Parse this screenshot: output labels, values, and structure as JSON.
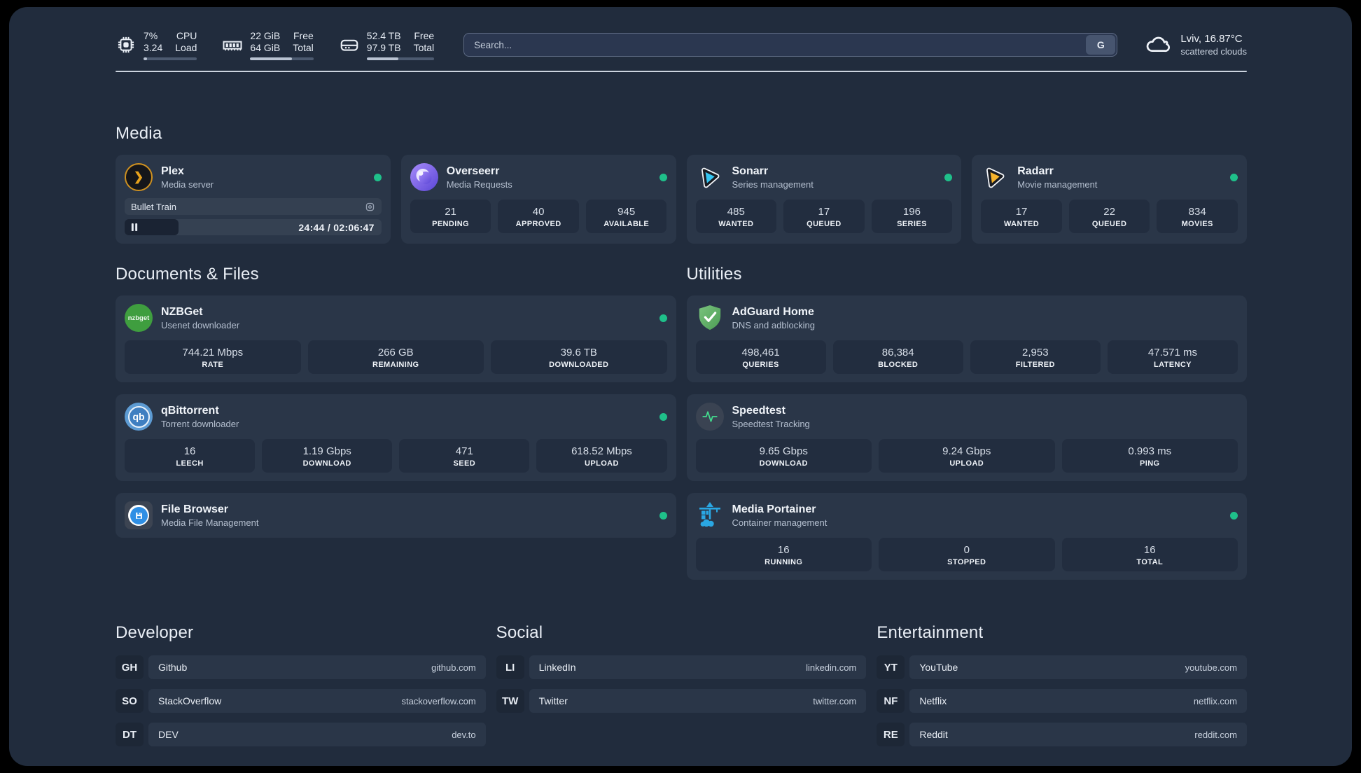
{
  "system_bar": {
    "cpu": {
      "icon": "cpu-chip-icon",
      "values": [
        "7%",
        "3.24"
      ],
      "labels": [
        "CPU",
        "Load"
      ],
      "progress_pct": 7
    },
    "ram": {
      "icon": "memory-icon",
      "values": [
        "22 GiB",
        "64 GiB"
      ],
      "labels": [
        "Free",
        "Total"
      ],
      "progress_pct": 66
    },
    "disk": {
      "icon": "hard-drive-icon",
      "values": [
        "52.4 TB",
        "97.9 TB"
      ],
      "labels": [
        "Free",
        "Total"
      ],
      "progress_pct": 47
    },
    "search": {
      "placeholder": "Search...",
      "provider_button": "G"
    },
    "weather": {
      "icon": "cloud-icon",
      "location_temperature": "Lviv, 16.87°C",
      "condition": "scattered clouds"
    }
  },
  "sections": {
    "media": {
      "title": "Media",
      "cards": {
        "plex": {
          "title": "Plex",
          "subtitle": "Media server",
          "online": true,
          "player": {
            "now_playing": "Bullet Train",
            "time": "24:44 / 02:06:47",
            "progress_pct": 21
          }
        },
        "overseerr": {
          "title": "Overseerr",
          "subtitle": "Media Requests",
          "online": true,
          "stats": [
            {
              "value": "21",
              "label": "PENDING"
            },
            {
              "value": "40",
              "label": "APPROVED"
            },
            {
              "value": "945",
              "label": "AVAILABLE"
            }
          ]
        },
        "sonarr": {
          "title": "Sonarr",
          "subtitle": "Series management",
          "online": true,
          "stats": [
            {
              "value": "485",
              "label": "WANTED"
            },
            {
              "value": "17",
              "label": "QUEUED"
            },
            {
              "value": "196",
              "label": "SERIES"
            }
          ]
        },
        "radarr": {
          "title": "Radarr",
          "subtitle": "Movie management",
          "online": true,
          "stats": [
            {
              "value": "17",
              "label": "WANTED"
            },
            {
              "value": "22",
              "label": "QUEUED"
            },
            {
              "value": "834",
              "label": "MOVIES"
            }
          ]
        }
      }
    },
    "documents": {
      "title": "Documents & Files",
      "cards": {
        "nzbget": {
          "title": "NZBGet",
          "subtitle": "Usenet downloader",
          "online": true,
          "icon_text": "nzbget",
          "stats": [
            {
              "value": "744.21 Mbps",
              "label": "RATE"
            },
            {
              "value": "266 GB",
              "label": "REMAINING"
            },
            {
              "value": "39.6 TB",
              "label": "DOWNLOADED"
            }
          ]
        },
        "qbittorrent": {
          "title": "qBittorrent",
          "subtitle": "Torrent downloader",
          "online": true,
          "icon_text": "qb",
          "stats": [
            {
              "value": "16",
              "label": "LEECH"
            },
            {
              "value": "1.19 Gbps",
              "label": "DOWNLOAD"
            },
            {
              "value": "471",
              "label": "SEED"
            },
            {
              "value": "618.52 Mbps",
              "label": "UPLOAD"
            }
          ]
        },
        "filebrowser": {
          "title": "File Browser",
          "subtitle": "Media File Management",
          "online": true
        }
      }
    },
    "utilities": {
      "title": "Utilities",
      "cards": {
        "adguard": {
          "title": "AdGuard Home",
          "subtitle": "DNS and adblocking",
          "stats": [
            {
              "value": "498,461",
              "label": "QUERIES"
            },
            {
              "value": "86,384",
              "label": "BLOCKED"
            },
            {
              "value": "2,953",
              "label": "FILTERED"
            },
            {
              "value": "47.571 ms",
              "label": "LATENCY"
            }
          ]
        },
        "speedtest": {
          "title": "Speedtest",
          "subtitle": "Speedtest Tracking",
          "stats": [
            {
              "value": "9.65 Gbps",
              "label": "DOWNLOAD"
            },
            {
              "value": "9.24 Gbps",
              "label": "UPLOAD"
            },
            {
              "value": "0.993 ms",
              "label": "PING"
            }
          ]
        },
        "portainer": {
          "title": "Media Portainer",
          "subtitle": "Container management",
          "online": true,
          "stats": [
            {
              "value": "16",
              "label": "RUNNING"
            },
            {
              "value": "0",
              "label": "STOPPED"
            },
            {
              "value": "16",
              "label": "TOTAL"
            }
          ]
        }
      }
    },
    "developer": {
      "title": "Developer",
      "links": [
        {
          "abbr": "GH",
          "name": "Github",
          "url": "github.com"
        },
        {
          "abbr": "SO",
          "name": "StackOverflow",
          "url": "stackoverflow.com"
        },
        {
          "abbr": "DT",
          "name": "DEV",
          "url": "dev.to"
        }
      ]
    },
    "social": {
      "title": "Social",
      "links": [
        {
          "abbr": "LI",
          "name": "LinkedIn",
          "url": "linkedin.com"
        },
        {
          "abbr": "TW",
          "name": "Twitter",
          "url": "twitter.com"
        }
      ]
    },
    "entertainment": {
      "title": "Entertainment",
      "links": [
        {
          "abbr": "YT",
          "name": "YouTube",
          "url": "youtube.com"
        },
        {
          "abbr": "NF",
          "name": "Netflix",
          "url": "netflix.com"
        },
        {
          "abbr": "RE",
          "name": "Reddit",
          "url": "reddit.com"
        }
      ]
    }
  },
  "colors": {
    "status_online": "#1fc08a",
    "plex_amber": "#e8a21c",
    "sonarr_cyan": "#35c5f1",
    "radarr_yellow": "#f7b42c",
    "portainer_blue": "#2aa7e3",
    "speedtest_green": "#43dc8e",
    "adguard_green": "#5fb264"
  }
}
